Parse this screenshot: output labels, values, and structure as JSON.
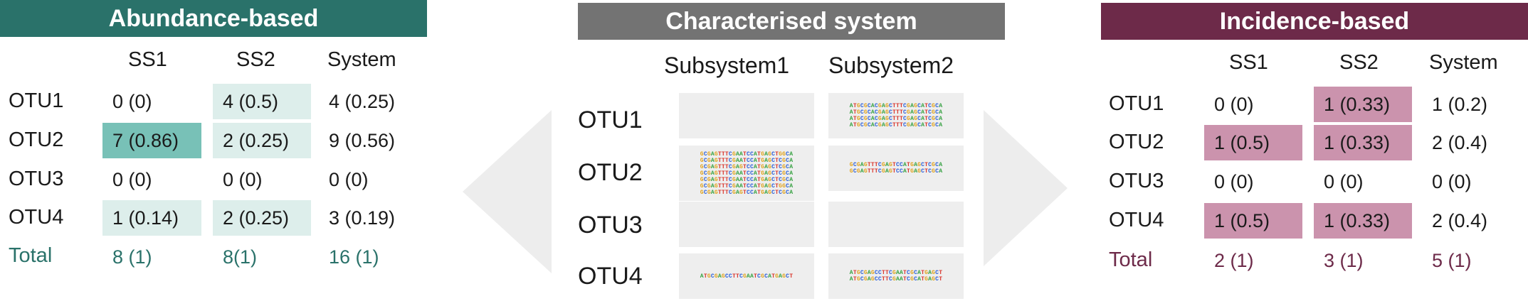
{
  "abundance": {
    "title": "Abundance-based",
    "columns": [
      "SS1",
      "SS2",
      "System"
    ],
    "rows": [
      {
        "otu": "OTU1",
        "ss1": "0 (0)",
        "ss2": "4 (0.5)",
        "system": "4 (0.25)"
      },
      {
        "otu": "OTU2",
        "ss1": "7 (0.86)",
        "ss2": "2 (0.25)",
        "system": "9 (0.56)"
      },
      {
        "otu": "OTU3",
        "ss1": "0 (0)",
        "ss2": "0 (0)",
        "system": "0 (0)"
      },
      {
        "otu": "OTU4",
        "ss1": "1 (0.14)",
        "ss2": "2 (0.25)",
        "system": "3 (0.19)"
      }
    ],
    "total": {
      "label": "Total",
      "ss1": "8 (1)",
      "ss2": "8(1)",
      "system": "16 (1)"
    },
    "colors": {
      "header": "#2a726a",
      "high": "#78c1b7",
      "low": "#ddeeeb"
    }
  },
  "characterised": {
    "title": "Characterised system",
    "columns": [
      "Subsystem1",
      "Subsystem2"
    ],
    "rows": [
      "OTU1",
      "OTU2",
      "OTU3",
      "OTU4"
    ],
    "sequences": {
      "otu1_ss2": [
        "ATGCGCACGAGCTTTCGAGCATCGCA",
        "ATGCGCACGAGCTTTCGAGCATCGCA",
        "ATGCGCACGAGCTTTCGAGCATCGCA",
        "ATGCGCACGAGCTTTCGAGCATCGCA"
      ],
      "otu2_ss1": [
        "GCGAGTTTCGAATCCATGAGCTGGCA",
        "GCGAGTTTCGAATCCATGAGCTCGCA",
        "GCGAGTTTCGAGTCCATGAGCTCGCA",
        "GCGAGTTTCGAATCCATGAGCTCGCA",
        "GCGAGTTTCGAATCCATGAGCTCGCA",
        "GCGAGTTTCGAATCCATGAGCTGGCA",
        "GCGAGTTTCGAGTCCATGAGCTCGCA"
      ],
      "otu2_ss2": [
        "GCGAGTTTCGAGTCCATGAGCTCGCA",
        "GCGAGTTTCGAGTCCATGAGCTCGCA"
      ],
      "otu4_ss1": [
        "ATGCGAGCCTTCGAATCGCATGAGCT"
      ],
      "otu4_ss2": [
        "ATGCGAGCCTTCGAATCGCATGAGCT",
        "ATGCGAGCCTTCGAATCGCATGAGCT"
      ]
    },
    "colors": {
      "header": "#737373",
      "box": "#eeeeee"
    }
  },
  "incidence": {
    "title": "Incidence-based",
    "columns": [
      "SS1",
      "SS2",
      "System"
    ],
    "rows": [
      {
        "otu": "OTU1",
        "ss1": "0 (0)",
        "ss2": "1 (0.33)",
        "system": "1 (0.2)"
      },
      {
        "otu": "OTU2",
        "ss1": "1 (0.5)",
        "ss2": "1 (0.33)",
        "system": "2 (0.4)"
      },
      {
        "otu": "OTU3",
        "ss1": "0 (0)",
        "ss2": "0 (0)",
        "system": "0 (0)"
      },
      {
        "otu": "OTU4",
        "ss1": "1 (0.5)",
        "ss2": "1 (0.33)",
        "system": "2 (0.4)"
      }
    ],
    "total": {
      "label": "Total",
      "ss1": "2 (1)",
      "ss2": "3 (1)",
      "system": "5 (1)"
    },
    "colors": {
      "header": "#6d2a49",
      "cell": "#cb93ad"
    }
  }
}
